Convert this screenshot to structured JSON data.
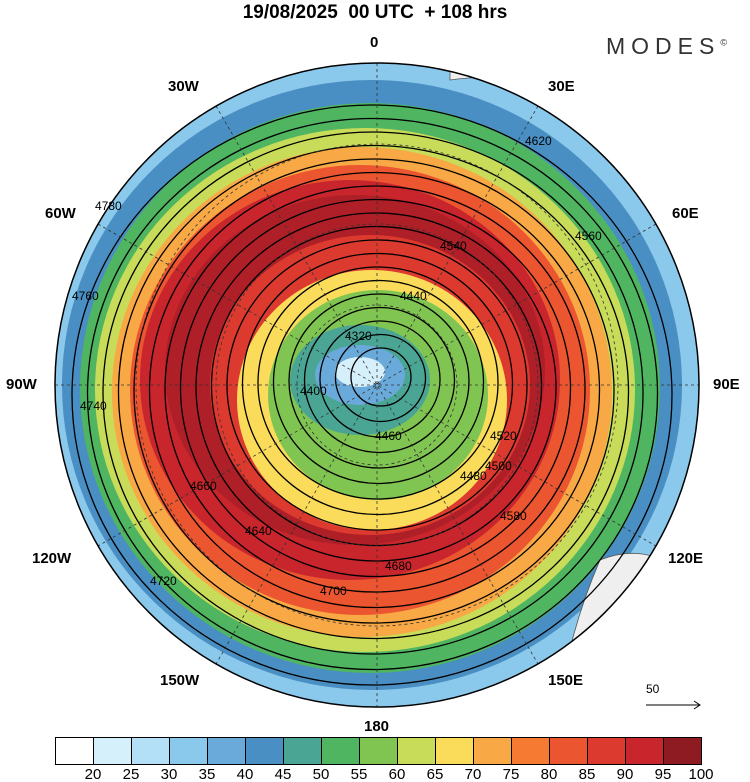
{
  "title": "19/08/2025  00 UTC  + 108 hrs",
  "logo": {
    "text": "MODES",
    "mark": "©"
  },
  "longitudes": {
    "n": "0",
    "ne": "30E",
    "e60": "60E",
    "e": "90E",
    "e120": "120E",
    "e150": "150E",
    "s": "180",
    "w150": "150W",
    "w120": "120W",
    "w": "90W",
    "w60": "60W",
    "w30": "30W"
  },
  "colorbar": {
    "colors": [
      "#ffffff",
      "#d6f0fb",
      "#b3e0f7",
      "#8ac8ec",
      "#6aaada",
      "#4a8fc3",
      "#4aa595",
      "#4fb560",
      "#80c551",
      "#c8dc5a",
      "#fadc5a",
      "#f8a844",
      "#f67a32",
      "#eb552f",
      "#dd3a2f",
      "#c8252c",
      "#ae1f27",
      "#8e1b21"
    ],
    "labels": [
      "20",
      "25",
      "30",
      "35",
      "40",
      "45",
      "50",
      "55",
      "60",
      "65",
      "70",
      "75",
      "80",
      "85",
      "90",
      "95",
      "100"
    ]
  },
  "contours": [
    "4780",
    "4760",
    "4740",
    "4720",
    "4700",
    "4680",
    "4660",
    "4640",
    "4620",
    "4580",
    "4560",
    "4540",
    "4520",
    "4500",
    "4480",
    "4460",
    "4440",
    "4400",
    "4320"
  ],
  "vector_ref": "50"
}
